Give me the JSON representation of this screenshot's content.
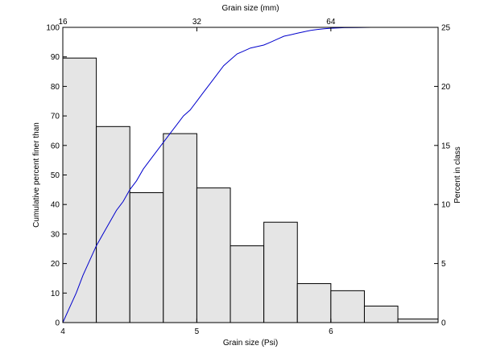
{
  "chart_data": {
    "type": "bar",
    "xlabel_bottom": "Grain size (Psi)",
    "xlabel_top": "Grain size (mm)",
    "ylabel_left": "Cumulative percent finer than",
    "ylabel_right": "Percent in class",
    "x_bottom": {
      "lim": [
        4,
        6.8
      ],
      "ticks": [
        4,
        5,
        6
      ],
      "tick_labels": [
        "4",
        "5",
        "6"
      ]
    },
    "x_top": {
      "ticks_psi": [
        4,
        5,
        6
      ],
      "tick_labels": [
        "16",
        "32",
        "64"
      ]
    },
    "y_left": {
      "lim": [
        0,
        100
      ],
      "ticks": [
        0,
        10,
        20,
        30,
        40,
        50,
        60,
        70,
        80,
        90,
        100
      ]
    },
    "y_right": {
      "lim": [
        0,
        25
      ],
      "ticks": [
        0,
        5,
        10,
        15,
        20,
        25
      ]
    },
    "bars": {
      "axis": "right",
      "fill": "#e5e5e5",
      "edges": [
        4.0,
        4.25,
        4.5,
        4.75,
        5.0,
        5.25,
        5.5,
        5.75,
        6.0,
        6.25,
        6.5,
        6.8
      ],
      "values": [
        22.4,
        16.6,
        11.0,
        16.0,
        11.4,
        6.5,
        8.5,
        3.3,
        2.7,
        1.4,
        0.3
      ]
    },
    "series": [
      {
        "type": "line",
        "axis": "left",
        "color": "#0000cc",
        "x": [
          4.0,
          4.05,
          4.1,
          4.15,
          4.2,
          4.25,
          4.3,
          4.35,
          4.4,
          4.45,
          4.5,
          4.55,
          4.6,
          4.65,
          4.7,
          4.75,
          4.8,
          4.85,
          4.9,
          4.95,
          5.0,
          5.05,
          5.1,
          5.15,
          5.2,
          5.25,
          5.3,
          5.35,
          5.4,
          5.45,
          5.5,
          5.55,
          5.6,
          5.65,
          5.7,
          5.75,
          5.8,
          5.85,
          5.9,
          5.95,
          6.0,
          6.05,
          6.1,
          6.2,
          6.3,
          6.4,
          6.5,
          6.55
        ],
        "y": [
          0,
          5,
          10,
          16,
          21,
          26,
          30,
          34,
          38,
          41,
          45,
          48,
          52,
          55,
          58,
          61,
          64,
          67,
          70,
          72,
          75,
          78,
          81,
          84,
          87,
          89,
          91,
          92,
          93,
          93.5,
          94,
          95,
          96,
          97,
          97.5,
          98,
          98.5,
          99,
          99.3,
          99.5,
          99.7,
          99.8,
          99.9,
          99.95,
          100,
          100,
          100,
          100
        ]
      }
    ]
  }
}
